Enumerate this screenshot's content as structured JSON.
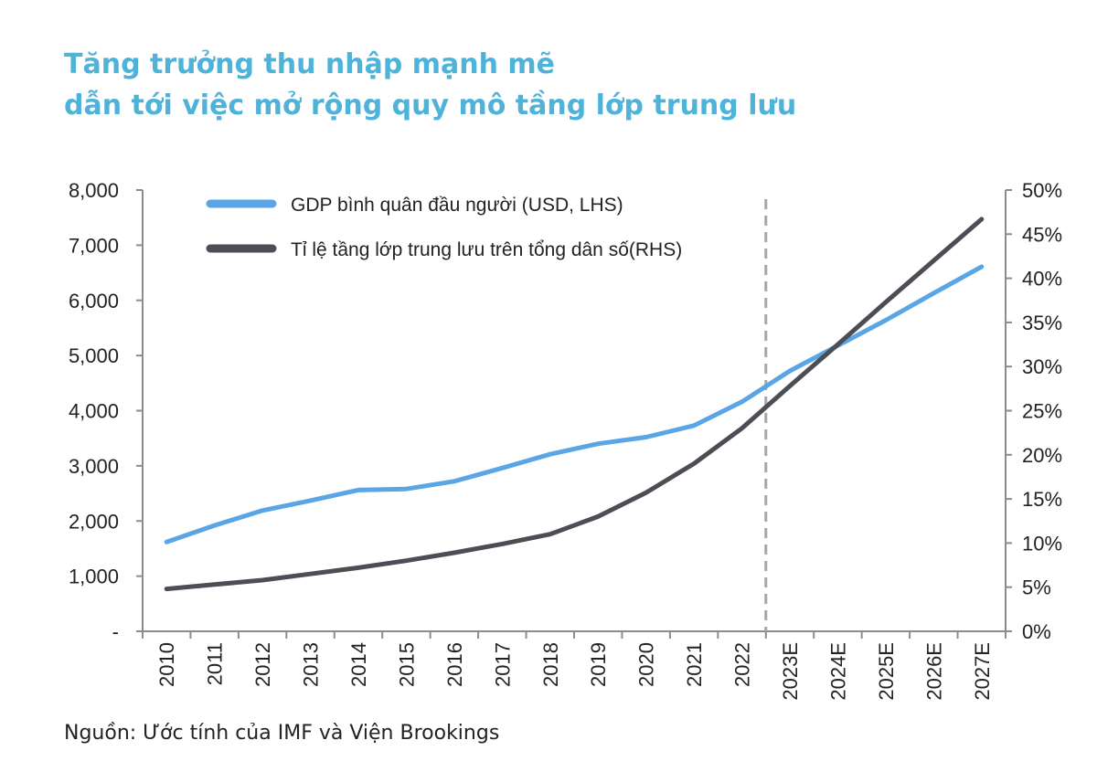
{
  "header": {
    "title_line1": "Tăng trưởng thu nhập mạnh mẽ",
    "title_line2": "dẫn tới việc mở rộng quy mô tầng lớp trung lưu"
  },
  "footer": {
    "source": "Nguồn: Ước tính của IMF và Viện Brookings"
  },
  "chart_data": {
    "type": "line",
    "x": [
      "2010",
      "2011",
      "2012",
      "2013",
      "2014",
      "2015",
      "2016",
      "2017",
      "2018",
      "2019",
      "2020",
      "2021",
      "2022",
      "2023E",
      "2024E",
      "2025E",
      "2026E",
      "2027E"
    ],
    "y_left": {
      "min": 0,
      "max": 8000,
      "ticks": [
        "-",
        "1,000",
        "2,000",
        "3,000",
        "4,000",
        "5,000",
        "6,000",
        "7,000",
        "8,000"
      ]
    },
    "y_right": {
      "min": 0,
      "max": 50,
      "ticks": [
        "0%",
        "5%",
        "10%",
        "15%",
        "20%",
        "25%",
        "30%",
        "35%",
        "40%",
        "45%",
        "50%"
      ]
    },
    "forecast_divider_after": "2022",
    "legend_position": "top-left",
    "series": [
      {
        "name": "GDP bình quân đầu người (USD, LHS)",
        "axis": "left",
        "color": "#5aa5e6",
        "values": [
          1620,
          1920,
          2190,
          2370,
          2560,
          2580,
          2720,
          2960,
          3210,
          3400,
          3520,
          3730,
          4160,
          4720,
          5180,
          5640,
          6130,
          6610
        ]
      },
      {
        "name": "Tỉ lệ tầng lớp trung lưu trên tổng dân số(RHS)",
        "axis": "right",
        "color": "#4b4f55",
        "values": [
          4.8,
          5.3,
          5.8,
          6.5,
          7.2,
          8.0,
          8.9,
          9.9,
          11.0,
          13.0,
          15.7,
          19.0,
          23.0,
          27.8,
          32.5,
          37.3,
          42.0,
          46.7
        ]
      }
    ]
  }
}
